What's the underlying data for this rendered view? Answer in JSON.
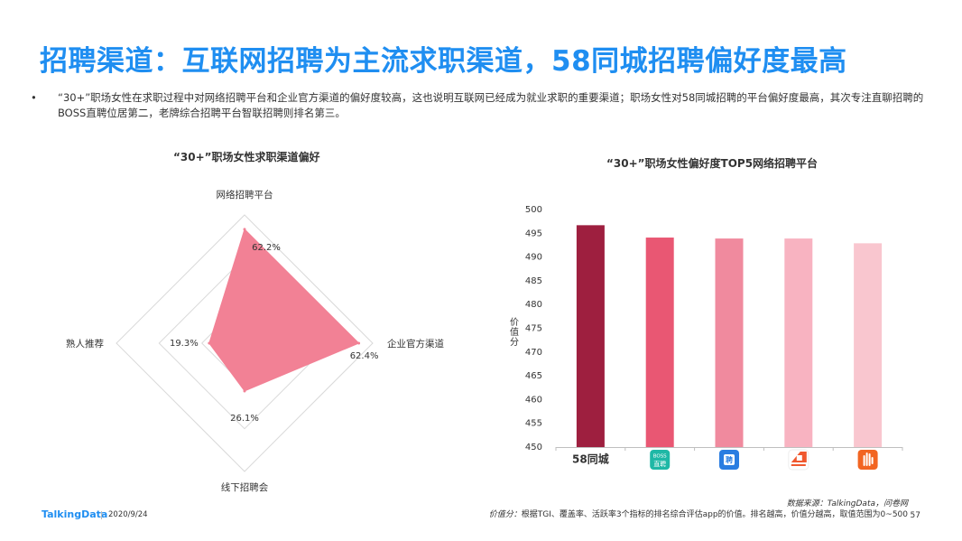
{
  "page": {
    "title": "招聘渠道：互联网招聘为主流求职渠道，58同城招聘偏好度最高",
    "bullet_mark": "•",
    "bullet_text": "“30+”职场女性在求职过程中对网络招聘平台和企业官方渠道的偏好度较高，这也说明互联网已经成为就业求职的重要渠道；职场女性对58同城招聘的平台偏好度最高，其次专注直聊招聘的BOSS直聘位居第二，老牌综合招聘平台智联招聘则排名第三。"
  },
  "footer": {
    "logo": "TalkingData",
    "date": "2020/9/24",
    "source": "数据来源：TalkingData，问卷网",
    "note_label": "价值分：",
    "note_text": "根据TGI、覆盖率、活跃率3个指标的排名综合评估app的价值。排名越高，价值分越高，取值范围为0~500",
    "page_number": "57"
  },
  "chart_data": [
    {
      "type": "radar",
      "title": "“30+”职场女性求职渠道偏好",
      "axes": [
        "网络招聘平台",
        "企业官方渠道",
        "线下招聘会",
        "熟人推荐"
      ],
      "values": [
        62.2,
        62.4,
        26.1,
        19.3
      ],
      "value_labels": [
        "62.2%",
        "62.4%",
        "26.1%",
        "19.3%"
      ],
      "range": [
        0,
        70
      ],
      "grid_levels": 3,
      "fill_color": "#f28195"
    },
    {
      "type": "bar",
      "title": "“30+”职场女性偏好度TOP5网络招聘平台",
      "categories": [
        "58同城",
        "BOSS直聘",
        "智联招聘",
        "前程无忧",
        "猎聘"
      ],
      "category_labels": {
        "c0": "58同城",
        "c1_top": "BOSS",
        "c1_bottom": "直聘",
        "c2_glyph": "聘"
      },
      "values": [
        496.7,
        494.1,
        493.9,
        493.9,
        492.9
      ],
      "colors": [
        "#9e1f3f",
        "#e95773",
        "#f08a9e",
        "#f8b3c1",
        "#f9c6cf"
      ],
      "icon_colors": [
        "#e8314f",
        "#1fb8a6",
        "#2a7de1",
        "#f0582e",
        "#f26522"
      ],
      "ylabel": "价值分",
      "ylim": [
        450,
        500
      ],
      "yticks": [
        450,
        455,
        460,
        465,
        470,
        475,
        480,
        485,
        490,
        495,
        500
      ],
      "grid": false
    }
  ]
}
